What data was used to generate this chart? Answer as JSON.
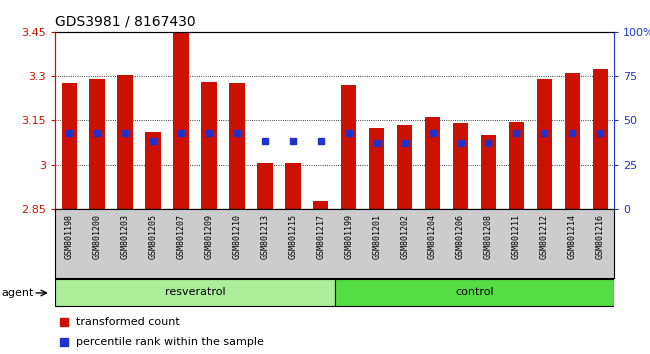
{
  "title": "GDS3981 / 8167430",
  "samples": [
    "GSM801198",
    "GSM801200",
    "GSM801203",
    "GSM801205",
    "GSM801207",
    "GSM801209",
    "GSM801210",
    "GSM801213",
    "GSM801215",
    "GSM801217",
    "GSM801199",
    "GSM801201",
    "GSM801202",
    "GSM801204",
    "GSM801206",
    "GSM801208",
    "GSM801211",
    "GSM801212",
    "GSM801214",
    "GSM801216"
  ],
  "bar_values": [
    3.275,
    3.29,
    3.305,
    3.11,
    3.45,
    3.28,
    3.275,
    3.005,
    3.005,
    2.875,
    3.27,
    3.125,
    3.135,
    3.16,
    3.14,
    3.1,
    3.145,
    3.29,
    3.31,
    3.325
  ],
  "percentile_values": [
    0.43,
    0.43,
    0.43,
    0.385,
    0.43,
    0.43,
    0.43,
    0.385,
    0.385,
    0.385,
    0.43,
    0.37,
    0.37,
    0.43,
    0.37,
    0.37,
    0.43,
    0.43,
    0.43,
    0.43
  ],
  "ymin": 2.85,
  "ymax": 3.45,
  "bar_color": "#cc1100",
  "blue_color": "#2233cc",
  "resveratrol_color": "#aaee99",
  "control_color": "#55dd44",
  "xtick_bg": "#cccccc",
  "plot_bg": "#ffffff",
  "title_fontsize": 10,
  "ytick_color": "#cc1100",
  "ytick_right_color": "#2233cc",
  "bar_width": 0.55,
  "blue_square_size": 4,
  "yticks_left": [
    2.85,
    3.0,
    3.15,
    3.3,
    3.45
  ],
  "ytick_labels_left": [
    "2.85",
    "3",
    "3.15",
    "3.3",
    "3.45"
  ],
  "yticks_right": [
    0.0,
    0.25,
    0.5,
    0.75,
    1.0
  ],
  "ytick_labels_right": [
    "0",
    "25",
    "50",
    "75",
    "100%"
  ]
}
